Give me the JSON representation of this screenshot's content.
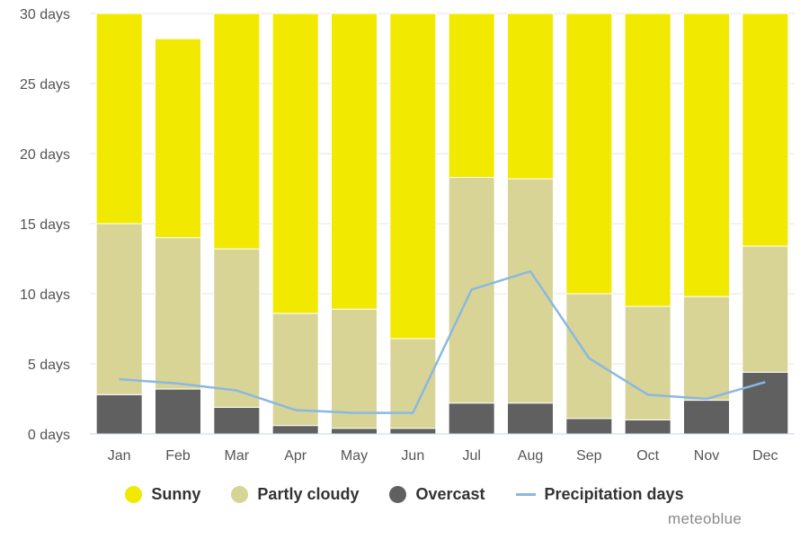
{
  "chart_data": {
    "type": "bar",
    "stacked": true,
    "categories": [
      "Jan",
      "Feb",
      "Mar",
      "Apr",
      "May",
      "Jun",
      "Jul",
      "Aug",
      "Sep",
      "Oct",
      "Nov",
      "Dec"
    ],
    "series": [
      {
        "name": "Overcast",
        "color": "#606060",
        "values": [
          2.8,
          3.2,
          1.9,
          0.6,
          0.4,
          0.4,
          2.2,
          2.2,
          1.1,
          1.0,
          2.4,
          4.4
        ]
      },
      {
        "name": "Partly cloudy",
        "color": "#d8d496",
        "values": [
          12.2,
          10.8,
          11.3,
          8.0,
          8.5,
          6.4,
          16.1,
          16.0,
          8.9,
          8.1,
          7.4,
          9.0
        ]
      },
      {
        "name": "Sunny",
        "color": "#f2e900",
        "values": [
          16.0,
          14.2,
          17.8,
          21.4,
          22.1,
          23.2,
          12.7,
          12.8,
          20.0,
          21.9,
          20.2,
          17.6
        ]
      }
    ],
    "line_series": {
      "name": "Precipitation days",
      "color": "#8ab8e2",
      "values": [
        3.9,
        3.6,
        3.1,
        1.7,
        1.5,
        1.5,
        10.3,
        11.6,
        5.4,
        2.8,
        2.5,
        3.7
      ]
    },
    "ylim": [
      0,
      30
    ],
    "yticks": [
      0,
      5,
      10,
      15,
      20,
      25,
      30
    ],
    "ytick_labels": [
      "0 days",
      "5 days",
      "10 days",
      "15 days",
      "20 days",
      "25 days",
      "30 days"
    ],
    "grid": true,
    "legend_position": "bottom"
  },
  "legend": {
    "sunny": "Sunny",
    "partly_cloudy": "Partly cloudy",
    "overcast": "Overcast",
    "precipitation_days": "Precipitation days"
  },
  "branding": "meteoblue",
  "colors": {
    "sunny": "#f2e900",
    "partly_cloudy": "#d8d496",
    "overcast": "#606060",
    "precipitation_line": "#8ab8e2"
  }
}
